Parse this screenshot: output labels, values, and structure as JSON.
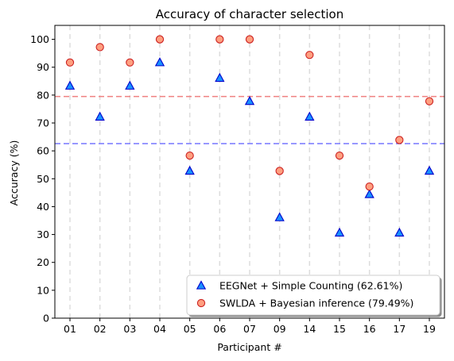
{
  "chart_data": {
    "type": "scatter",
    "title": "Accuracy of character selection",
    "xlabel": "Participant #",
    "ylabel": "Accuracy (%)",
    "categories": [
      "01",
      "02",
      "03",
      "04",
      "05",
      "06",
      "07",
      "09",
      "14",
      "15",
      "16",
      "17",
      "19"
    ],
    "ylim": [
      0,
      105
    ],
    "yticks": [
      0,
      10,
      20,
      30,
      40,
      50,
      60,
      70,
      80,
      90,
      100
    ],
    "ytick_labels": [
      "0",
      "10",
      "20",
      "30",
      "40",
      "50",
      "60",
      "70",
      "80",
      "90",
      "100"
    ],
    "grid": "vertical dashed lines at each participant",
    "legend_position": "lower-right",
    "series": [
      {
        "name": "EEGNet + Simple Counting (62.61%)",
        "marker": "triangle",
        "fill": "#1a90ff",
        "edge": "#0000cc",
        "values": [
          83.3,
          72.2,
          83.3,
          91.7,
          52.8,
          86.1,
          77.8,
          36.1,
          72.2,
          30.6,
          44.4,
          30.6,
          52.8
        ],
        "mean": 62.61,
        "mean_line_color": "#7777ff"
      },
      {
        "name": "SWLDA + Bayesian inference (79.49%)",
        "marker": "circle",
        "fill": "#ff9f80",
        "edge": "#cc2222",
        "values": [
          91.7,
          97.2,
          91.7,
          100,
          58.3,
          100,
          100,
          52.8,
          94.4,
          58.3,
          47.2,
          63.9,
          77.8
        ],
        "mean": 79.49,
        "mean_line_color": "#f08080"
      }
    ]
  }
}
